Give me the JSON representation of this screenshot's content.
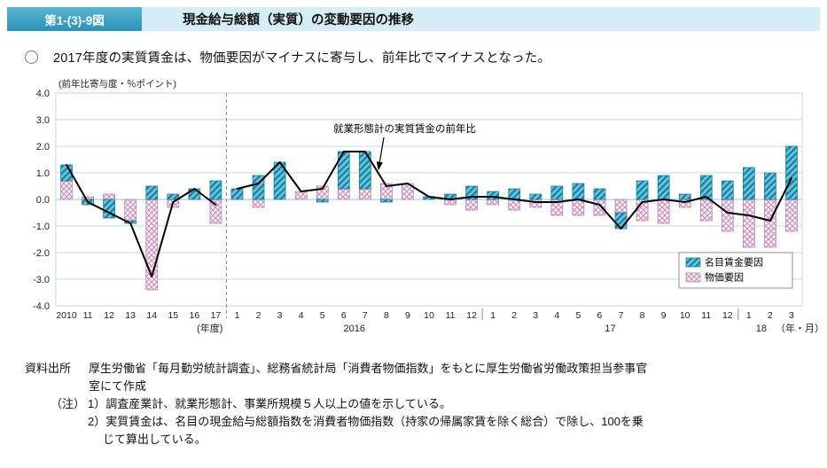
{
  "header": {
    "figure_label": "第1-(3)-9図",
    "title": "現金給与総額（実質）の変動要因の推移"
  },
  "lead": {
    "bullet_text": "2017年度の実質賃金は、物価要因がマイナスに寄与し、前年比でマイナスとなった。"
  },
  "chart_data": {
    "type": "bar",
    "subtype": "stacked-bar-with-line",
    "axis_unit_label": "(前年比寄与度・％ポイント)",
    "ylim": [
      -4.0,
      4.0
    ],
    "ytick_step": 1.0,
    "grid": true,
    "legend_position": "right-middle",
    "categories": [
      "2010",
      "11",
      "12",
      "13",
      "14",
      "15",
      "16",
      "17",
      "1",
      "2",
      "3",
      "4",
      "5",
      "6",
      "7",
      "8",
      "9",
      "10",
      "11",
      "12",
      "1",
      "2",
      "3",
      "4",
      "5",
      "6",
      "7",
      "8",
      "9",
      "10",
      "11",
      "12",
      "1",
      "2",
      "3"
    ],
    "sections": [
      {
        "label": "(年度)",
        "from": 0,
        "to": 7
      },
      {
        "label": "2016",
        "from": 8,
        "to": 19
      },
      {
        "label": "17",
        "from": 20,
        "to": 31
      },
      {
        "label": "18",
        "from": 32,
        "to": 34
      }
    ],
    "x_axis_suffix": "（年・月）",
    "separator_index": 8,
    "series": [
      {
        "name": "名目賃金要因",
        "type": "bar",
        "pattern": "teal-diagonal-hatch",
        "color": "#2f9fc0",
        "values": [
          0.6,
          -0.2,
          -0.7,
          -0.1,
          0.5,
          0.2,
          0.4,
          0.7,
          0.4,
          0.9,
          1.4,
          0.0,
          -0.1,
          1.4,
          1.4,
          -0.1,
          0.0,
          0.1,
          0.2,
          0.5,
          0.3,
          0.4,
          0.2,
          0.5,
          0.6,
          0.4,
          -0.6,
          0.7,
          0.9,
          0.2,
          0.9,
          0.7,
          1.2,
          1.0,
          2.0
        ]
      },
      {
        "name": "物価要因",
        "type": "bar",
        "pattern": "pink-crosshatch",
        "color": "#e9c9dd",
        "values": [
          0.7,
          0.1,
          0.2,
          -0.8,
          -3.4,
          -0.3,
          0.0,
          -0.9,
          0.0,
          -0.3,
          0.0,
          0.3,
          0.5,
          0.4,
          0.4,
          0.6,
          0.6,
          0.0,
          -0.2,
          -0.4,
          -0.2,
          -0.4,
          -0.3,
          -0.6,
          -0.6,
          -0.6,
          -0.5,
          -0.8,
          -0.9,
          -0.3,
          -0.8,
          -1.2,
          -1.8,
          -1.8,
          -1.2
        ]
      },
      {
        "name": "就業形態計の実質賃金の前年比",
        "type": "line",
        "color": "#000000",
        "values": [
          1.3,
          -0.1,
          -0.5,
          -0.9,
          -2.9,
          -0.1,
          0.4,
          -0.2,
          0.4,
          0.6,
          1.4,
          0.3,
          0.4,
          1.8,
          1.8,
          0.5,
          0.6,
          0.1,
          0.0,
          0.1,
          0.1,
          0.0,
          -0.1,
          -0.1,
          0.0,
          -0.2,
          -1.1,
          -0.1,
          0.0,
          -0.1,
          0.1,
          -0.5,
          -0.6,
          -0.8,
          0.8
        ]
      }
    ],
    "annotation": {
      "text": "就業形態計の実質賃金の前年比"
    },
    "legend": [
      "名目賃金要因",
      "物価要因"
    ]
  },
  "footer": {
    "source_label": "資料出所",
    "source_line1": "厚生労働省「毎月勤労統計調査」、総務省統計局「消費者物価指数」をもとに厚生労働省労働政策担当参事官",
    "source_line2": "室にて作成",
    "note_label": "（注）",
    "note1": "1）調査産業計、就業形態計、事業所規模５人以上の値を示している。",
    "note2_line1": "2）実質賃金は、名目の現金給与総額指数を消費者物価指数（持家の帰属家賃を除く総合）で除し、100を乗",
    "note2_line2": "じて算出している。"
  }
}
